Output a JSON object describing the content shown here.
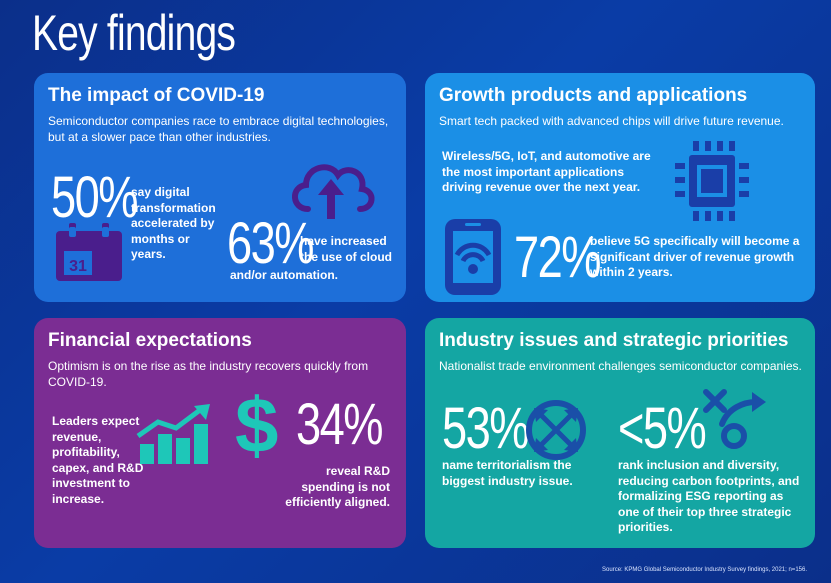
{
  "title": "Key findings",
  "panels": {
    "covid": {
      "title": "The impact of COVID-19",
      "subtitle": "Semiconductor companies race to embrace digital technologies, but at a slower pace than other industries.",
      "stat1": {
        "value": "50%",
        "text": "say digital transformation accelerated by months or years."
      },
      "calendar_day": "31",
      "stat2": {
        "value": "63%",
        "text_a": "have increased the use of cloud",
        "text_b": "and/or automation."
      }
    },
    "growth": {
      "title": "Growth products and applications",
      "subtitle": "Smart tech packed with advanced chips will drive future revenue.",
      "note": "Wireless/5G, IoT, and automotive are the most important applications driving revenue over the next year.",
      "stat": {
        "value": "72%",
        "text": "believe 5G specifically will become a significant driver of revenue growth within 2 years."
      }
    },
    "financial": {
      "title": "Financial expectations",
      "subtitle": "Optimism is on the rise as the industry recovers quickly from COVID-19.",
      "note": "Leaders expect revenue, profitability, capex, and R&D investment to increase.",
      "dollar": "$",
      "stat": {
        "value": "34%",
        "text": "reveal R&D spending is not efficiently aligned."
      }
    },
    "issues": {
      "title": "Industry issues and strategic priorities",
      "subtitle": "Nationalist trade environment challenges semiconductor companies.",
      "stat1": {
        "value": "53%",
        "text": "name territorialism the biggest industry issue."
      },
      "stat2": {
        "value": "<5%",
        "text": "rank inclusion and diversity, reducing carbon footprints, and formalizing ESG reporting as one of their top three strategic priorities."
      }
    }
  },
  "source": "Source: KPMG Global Semiconductor Industry Survey findings, 2021; n=156.",
  "icons": {
    "calendar": "calendar-icon",
    "cloud": "cloud-upload-icon",
    "chip": "chip-icon",
    "phone": "smartphone-wireless-icon",
    "bars": "bar-chart-icon",
    "dollar": "dollar-icon",
    "globe": "globe-arrows-icon",
    "strategy": "strategy-icon"
  },
  "colors": {
    "background": "#0b2f8a",
    "covid_panel": "#1e6fd9",
    "growth_panel": "#1b8fe6",
    "financial_panel": "#7b2d93",
    "issues_panel": "#14a6a3",
    "icon_dark": "#4a1e8c",
    "icon_teal": "#1ec7b8"
  }
}
